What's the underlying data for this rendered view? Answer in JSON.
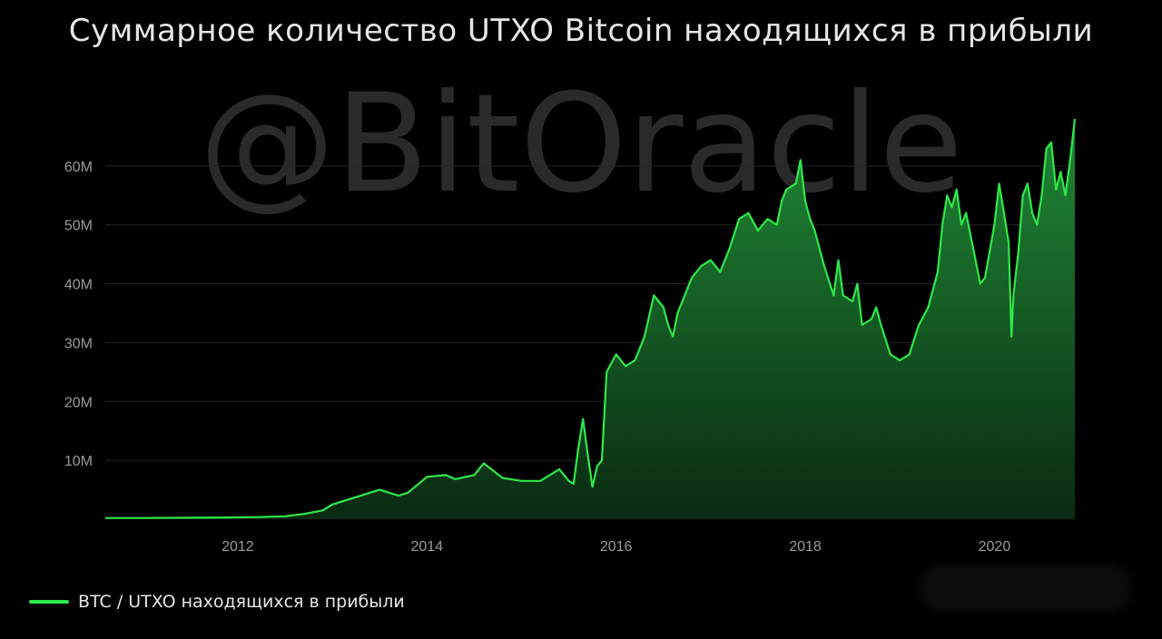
{
  "title": "Суммарное количество UTXO Bitcoin находящихся в прибыли",
  "watermark": "@BitOracle",
  "colors": {
    "background": "#000000",
    "line": "#2ee84a",
    "area_top": "#1f8a35",
    "area_bottom": "#0a2a12",
    "grid": "#262626",
    "text": "#e6e6e6",
    "axis_text": "#9a9a9a"
  },
  "chart_data": {
    "type": "area",
    "title": "Суммарное количество UTXO Bitcoin находящихся в прибыли",
    "xlabel": "",
    "ylabel": "",
    "xlim": [
      2010.6,
      2020.85
    ],
    "ylim": [
      0,
      70000000
    ],
    "x_ticks": [
      2012,
      2014,
      2016,
      2018,
      2020
    ],
    "x_tick_labels": [
      "2012",
      "2014",
      "2016",
      "2018",
      "2020"
    ],
    "y_ticks": [
      10000000,
      20000000,
      30000000,
      40000000,
      50000000,
      60000000
    ],
    "y_tick_labels": [
      "10M",
      "20M",
      "30M",
      "40M",
      "50M",
      "60M"
    ],
    "grid": true,
    "legend_position": "bottom-left",
    "series": [
      {
        "name": "BTC / UTXO находящихся в прибыли",
        "x": [
          2010.6,
          2011.0,
          2011.5,
          2011.9,
          2012.2,
          2012.5,
          2012.7,
          2012.9,
          2013.0,
          2013.2,
          2013.4,
          2013.5,
          2013.7,
          2013.8,
          2014.0,
          2014.2,
          2014.3,
          2014.5,
          2014.6,
          2014.8,
          2015.0,
          2015.2,
          2015.4,
          2015.5,
          2015.55,
          2015.6,
          2015.65,
          2015.7,
          2015.75,
          2015.8,
          2015.85,
          2015.9,
          2016.0,
          2016.1,
          2016.2,
          2016.3,
          2016.4,
          2016.5,
          2016.55,
          2016.6,
          2016.65,
          2016.7,
          2016.8,
          2016.9,
          2017.0,
          2017.1,
          2017.2,
          2017.3,
          2017.4,
          2017.5,
          2017.6,
          2017.7,
          2017.75,
          2017.8,
          2017.9,
          2017.95,
          2018.0,
          2018.05,
          2018.1,
          2018.2,
          2018.3,
          2018.35,
          2018.4,
          2018.5,
          2018.55,
          2018.6,
          2018.7,
          2018.75,
          2018.8,
          2018.9,
          2019.0,
          2019.1,
          2019.2,
          2019.3,
          2019.4,
          2019.45,
          2019.5,
          2019.55,
          2019.6,
          2019.65,
          2019.7,
          2019.8,
          2019.85,
          2019.9,
          2020.0,
          2020.05,
          2020.1,
          2020.15,
          2020.18,
          2020.2,
          2020.25,
          2020.3,
          2020.35,
          2020.4,
          2020.45,
          2020.5,
          2020.55,
          2020.6,
          2020.65,
          2020.7,
          2020.75,
          2020.8,
          2020.85
        ],
        "values": [
          200000,
          200000,
          250000,
          300000,
          350000,
          500000,
          900000,
          1500000,
          2500000,
          3500000,
          4500000,
          5000000,
          4000000,
          4500000,
          7200000,
          7500000,
          6800000,
          7500000,
          9500000,
          7000000,
          6500000,
          6500000,
          8500000,
          6500000,
          6000000,
          12000000,
          17000000,
          11000000,
          5500000,
          9000000,
          10000000,
          25000000,
          28000000,
          26000000,
          27000000,
          31000000,
          38000000,
          36000000,
          33000000,
          31000000,
          35000000,
          37000000,
          41000000,
          43000000,
          44000000,
          42000000,
          46000000,
          51000000,
          52000000,
          49000000,
          51000000,
          50000000,
          54000000,
          56000000,
          57000000,
          61000000,
          54000000,
          51000000,
          49000000,
          43000000,
          38000000,
          44000000,
          38000000,
          37000000,
          40000000,
          33000000,
          34000000,
          36000000,
          33000000,
          28000000,
          27000000,
          28000000,
          33000000,
          36000000,
          42000000,
          50000000,
          55000000,
          53000000,
          56000000,
          50000000,
          52000000,
          44000000,
          40000000,
          41000000,
          50000000,
          57000000,
          52000000,
          47000000,
          31000000,
          38000000,
          45000000,
          55000000,
          57000000,
          52000000,
          50000000,
          55000000,
          63000000,
          64000000,
          56000000,
          59000000,
          55000000,
          61000000,
          68000000
        ]
      }
    ]
  },
  "legend": {
    "label": "BTC / UTXO находящихся в прибыли"
  }
}
